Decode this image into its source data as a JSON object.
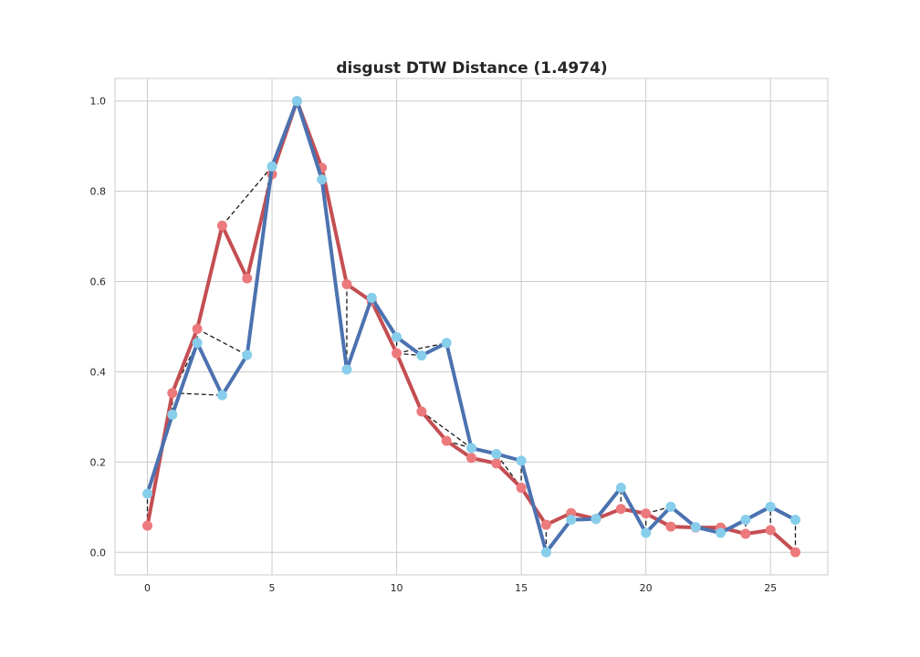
{
  "chart_data": {
    "type": "line",
    "title": "disgust DTW Distance (1.4974)",
    "xlabel": "",
    "ylabel": "",
    "xlim": [
      -1.3,
      27.3
    ],
    "ylim": [
      -0.05,
      1.05
    ],
    "x_ticks": [
      0,
      5,
      10,
      15,
      20,
      25
    ],
    "y_ticks": [
      0.0,
      0.2,
      0.4,
      0.6,
      0.8,
      1.0
    ],
    "x_tick_labels": [
      "0",
      "5",
      "10",
      "15",
      "20",
      "25"
    ],
    "y_tick_labels": [
      "0.0",
      "0.2",
      "0.4",
      "0.6",
      "0.8",
      "1.0"
    ],
    "grid": true,
    "legend": "none",
    "series": [
      {
        "line_color": "#c44e52",
        "marker_color": "#ec7a7d",
        "x": [
          0,
          1,
          2,
          3,
          4,
          5,
          6,
          7,
          8,
          9,
          10,
          11,
          12,
          13,
          14,
          15,
          16,
          17,
          18,
          19,
          20,
          21,
          22,
          23,
          24,
          25,
          26
        ],
        "values": [
          0.059,
          0.353,
          0.495,
          0.724,
          0.607,
          0.838,
          1.0,
          0.852,
          0.594,
          0.556,
          0.441,
          0.312,
          0.247,
          0.209,
          0.197,
          0.143,
          0.061,
          0.087,
          0.074,
          0.096,
          0.086,
          0.057,
          0.055,
          0.055,
          0.041,
          0.049,
          0.0
        ]
      },
      {
        "line_color": "#4c72b0",
        "marker_color": "#87ceeb",
        "x": [
          0,
          1,
          2,
          3,
          4,
          5,
          6,
          7,
          8,
          9,
          10,
          11,
          12,
          13,
          14,
          15,
          16,
          17,
          18,
          19,
          20,
          21,
          22,
          23,
          24,
          25,
          26
        ],
        "values": [
          0.13,
          0.305,
          0.464,
          0.348,
          0.437,
          0.855,
          1.0,
          0.826,
          0.405,
          0.564,
          0.477,
          0.436,
          0.464,
          0.231,
          0.218,
          0.203,
          0.0,
          0.072,
          0.074,
          0.143,
          0.043,
          0.101,
          0.056,
          0.043,
          0.072,
          0.101,
          0.072
        ]
      }
    ],
    "dtw_links": [
      [
        0,
        0
      ],
      [
        1,
        1
      ],
      [
        1,
        2
      ],
      [
        1,
        3
      ],
      [
        2,
        2
      ],
      [
        2,
        4
      ],
      [
        3,
        5
      ],
      [
        4,
        5
      ],
      [
        5,
        5
      ],
      [
        6,
        6
      ],
      [
        7,
        7
      ],
      [
        8,
        8
      ],
      [
        9,
        9
      ],
      [
        10,
        10
      ],
      [
        10,
        11
      ],
      [
        10,
        12
      ],
      [
        11,
        13
      ],
      [
        12,
        13
      ],
      [
        13,
        13
      ],
      [
        14,
        14
      ],
      [
        15,
        15
      ],
      [
        15,
        14
      ],
      [
        16,
        16
      ],
      [
        17,
        17
      ],
      [
        18,
        18
      ],
      [
        19,
        19
      ],
      [
        20,
        20
      ],
      [
        20,
        21
      ],
      [
        21,
        22
      ],
      [
        22,
        22
      ],
      [
        23,
        23
      ],
      [
        24,
        24
      ],
      [
        25,
        25
      ],
      [
        26,
        26
      ]
    ]
  }
}
